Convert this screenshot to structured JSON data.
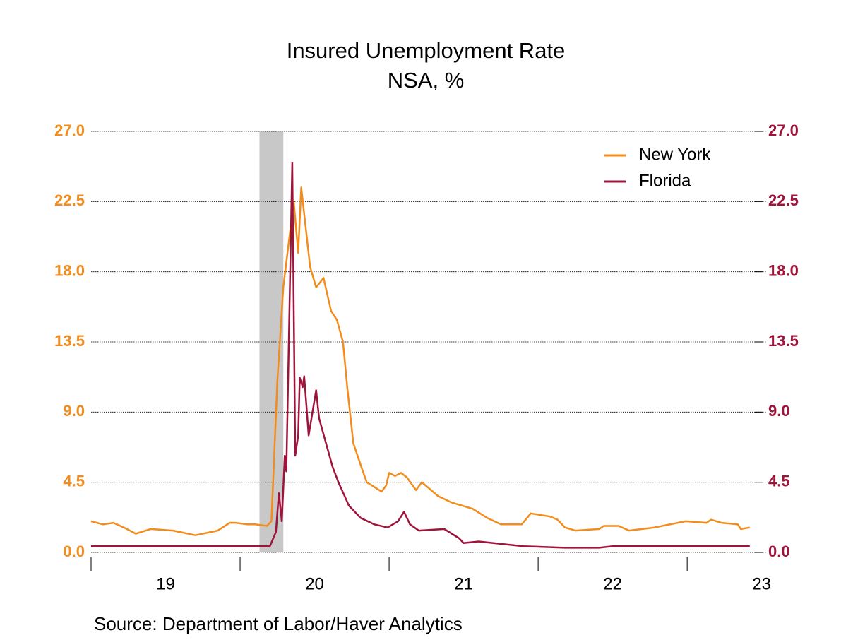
{
  "chart_data": {
    "type": "line",
    "title": "Insured Unemployment Rate",
    "subtitle": "NSA, %",
    "source": "Source:  Department of Labor/Haver Analytics",
    "xlim": [
      2019,
      2023.53
    ],
    "xticks": [
      2019,
      2020,
      2021,
      2022,
      2023
    ],
    "xtick_labels": [
      {
        "value": 2019.5,
        "label": "19"
      },
      {
        "value": 2020.5,
        "label": "20"
      },
      {
        "value": 2021.5,
        "label": "21"
      },
      {
        "value": 2022.5,
        "label": "22"
      },
      {
        "value": 2023.5,
        "label": "23"
      }
    ],
    "ylim": [
      0,
      27
    ],
    "yticks": [
      {
        "value": 0,
        "label": "0.0"
      },
      4.5,
      {
        "value": 9,
        "label": "9.0"
      },
      13.5,
      {
        "value": 18,
        "label": "18.0"
      },
      22.5,
      {
        "value": 27,
        "label": "27.0"
      }
    ],
    "y2lim": [
      0,
      27
    ],
    "y2ticks": [
      {
        "value": 0,
        "label": "0.0"
      },
      4.5,
      {
        "value": 9,
        "label": "9.0"
      },
      13.5,
      {
        "value": 18,
        "label": "18.0"
      },
      22.5,
      {
        "value": 27,
        "label": "27.0"
      }
    ],
    "y_color": "#f28c1c",
    "y2_color": "#a0143c",
    "grid": true,
    "legend": "top-right",
    "shaded_ranges": [
      [
        2020.13,
        2020.29
      ]
    ],
    "series": [
      {
        "name": "New York",
        "color": "#f28c1c",
        "axis": "y",
        "x": [
          2019.0,
          2019.08,
          2019.15,
          2019.22,
          2019.3,
          2019.4,
          2019.55,
          2019.7,
          2019.85,
          2019.93,
          2019.97,
          2020.05,
          2020.1,
          2020.18,
          2020.21,
          2020.25,
          2020.29,
          2020.36,
          2020.39,
          2020.41,
          2020.47,
          2020.51,
          2020.56,
          2020.61,
          2020.65,
          2020.69,
          2020.72,
          2020.76,
          2020.82,
          2020.85,
          2020.95,
          2020.98,
          2021.0,
          2021.04,
          2021.08,
          2021.12,
          2021.18,
          2021.22,
          2021.33,
          2021.42,
          2021.56,
          2021.66,
          2021.75,
          2021.89,
          2021.95,
          2022.08,
          2022.13,
          2022.18,
          2022.25,
          2022.41,
          2022.44,
          2022.54,
          2022.61,
          2022.78,
          2022.99,
          2023.13,
          2023.16,
          2023.23,
          2023.34,
          2023.36,
          2023.42
        ],
        "values": [
          2.0,
          1.8,
          1.9,
          1.6,
          1.2,
          1.5,
          1.4,
          1.1,
          1.4,
          1.9,
          1.9,
          1.8,
          1.8,
          1.7,
          2.0,
          11.0,
          17.0,
          22.5,
          19.2,
          23.4,
          18.3,
          17.0,
          17.6,
          15.5,
          14.9,
          13.5,
          10.5,
          7.0,
          5.3,
          4.5,
          3.9,
          4.3,
          5.1,
          4.9,
          5.1,
          4.8,
          4.0,
          4.5,
          3.6,
          3.2,
          2.8,
          2.2,
          1.8,
          1.8,
          2.5,
          2.3,
          2.1,
          1.6,
          1.4,
          1.5,
          1.7,
          1.7,
          1.4,
          1.6,
          2.0,
          1.9,
          2.1,
          1.9,
          1.8,
          1.5,
          1.6
        ]
      },
      {
        "name": "Florida",
        "color": "#a0143c",
        "axis": "y2",
        "x": [
          2019.0,
          2019.5,
          2020.0,
          2020.2,
          2020.24,
          2020.26,
          2020.28,
          2020.3,
          2020.31,
          2020.35,
          2020.37,
          2020.39,
          2020.4,
          2020.42,
          2020.43,
          2020.46,
          2020.51,
          2020.53,
          2020.62,
          2020.66,
          2020.73,
          2020.81,
          2020.9,
          2020.99,
          2021.06,
          2021.1,
          2021.14,
          2021.2,
          2021.37,
          2021.47,
          2021.5,
          2021.6,
          2021.7,
          2021.9,
          2022.18,
          2022.41,
          2022.5,
          2023.42
        ],
        "values": [
          0.4,
          0.4,
          0.4,
          0.4,
          1.3,
          3.8,
          2.0,
          6.2,
          5.2,
          25.0,
          6.2,
          7.5,
          11.2,
          10.6,
          11.3,
          7.5,
          10.4,
          8.6,
          5.5,
          4.5,
          3.0,
          2.2,
          1.8,
          1.6,
          2.0,
          2.6,
          1.8,
          1.4,
          1.5,
          0.9,
          0.6,
          0.7,
          0.6,
          0.4,
          0.3,
          0.3,
          0.4,
          0.4
        ]
      }
    ]
  }
}
